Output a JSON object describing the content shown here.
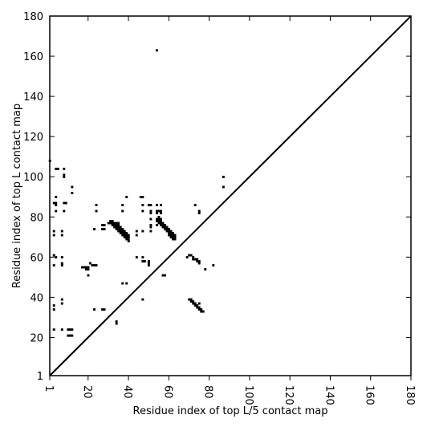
{
  "chart_data": {
    "type": "heatmap",
    "title": "",
    "xlabel": "Residue index of top L/5 contact map",
    "ylabel": "Residue index of top L contact map",
    "xlim": [
      1,
      180
    ],
    "ylim": [
      1,
      180
    ],
    "x_ticks": [
      1,
      20,
      40,
      60,
      80,
      100,
      120,
      140,
      160,
      180
    ],
    "y_ticks": [
      1,
      20,
      40,
      60,
      80,
      100,
      120,
      140,
      160,
      180
    ],
    "diagonal": {
      "from": [
        1,
        1
      ],
      "to": [
        180,
        180
      ]
    },
    "cell_color": "#000000",
    "background_color": "#ffffff",
    "contacts": [
      [
        1,
        108
      ],
      [
        4,
        104
      ],
      [
        5,
        104
      ],
      [
        8,
        104
      ],
      [
        8,
        101
      ],
      [
        8,
        100
      ],
      [
        12,
        95
      ],
      [
        12,
        92
      ],
      [
        4,
        90
      ],
      [
        3,
        87
      ],
      [
        4,
        87
      ],
      [
        4,
        86
      ],
      [
        8,
        87
      ],
      [
        9,
        87
      ],
      [
        4,
        83
      ],
      [
        8,
        83
      ],
      [
        3,
        73
      ],
      [
        3,
        71
      ],
      [
        7,
        73
      ],
      [
        7,
        71
      ],
      [
        3,
        61
      ],
      [
        4,
        60
      ],
      [
        7,
        60
      ],
      [
        7,
        57
      ],
      [
        7,
        56
      ],
      [
        3,
        56
      ],
      [
        7,
        39
      ],
      [
        7,
        37
      ],
      [
        3,
        36
      ],
      [
        3,
        34
      ],
      [
        3,
        24
      ],
      [
        7,
        24
      ],
      [
        10,
        24
      ],
      [
        11,
        24
      ],
      [
        12,
        24
      ],
      [
        10,
        21
      ],
      [
        11,
        21
      ],
      [
        12,
        21
      ],
      [
        24,
        86
      ],
      [
        24,
        83
      ],
      [
        27,
        76
      ],
      [
        28,
        76
      ],
      [
        27,
        74
      ],
      [
        28,
        74
      ],
      [
        23,
        74
      ],
      [
        17,
        55
      ],
      [
        18,
        55
      ],
      [
        19,
        55
      ],
      [
        20,
        55
      ],
      [
        19,
        54
      ],
      [
        20,
        54
      ],
      [
        20,
        51
      ],
      [
        21,
        57
      ],
      [
        22,
        56
      ],
      [
        23,
        56
      ],
      [
        24,
        56
      ],
      [
        23,
        34
      ],
      [
        27,
        34
      ],
      [
        28,
        34
      ],
      [
        34,
        28
      ],
      [
        34,
        27
      ],
      [
        31,
        78
      ],
      [
        32,
        78
      ],
      [
        30,
        77
      ],
      [
        31,
        77
      ],
      [
        32,
        77
      ],
      [
        33,
        77
      ],
      [
        34,
        77
      ],
      [
        35,
        77
      ],
      [
        32,
        76
      ],
      [
        33,
        76
      ],
      [
        34,
        76
      ],
      [
        35,
        76
      ],
      [
        33,
        75
      ],
      [
        34,
        75
      ],
      [
        35,
        75
      ],
      [
        36,
        75
      ],
      [
        34,
        74
      ],
      [
        35,
        74
      ],
      [
        36,
        74
      ],
      [
        37,
        74
      ],
      [
        35,
        73
      ],
      [
        36,
        73
      ],
      [
        37,
        73
      ],
      [
        38,
        73
      ],
      [
        36,
        72
      ],
      [
        37,
        72
      ],
      [
        38,
        72
      ],
      [
        39,
        72
      ],
      [
        37,
        71
      ],
      [
        38,
        71
      ],
      [
        39,
        71
      ],
      [
        40,
        71
      ],
      [
        38,
        70
      ],
      [
        39,
        70
      ],
      [
        40,
        70
      ],
      [
        39,
        69
      ],
      [
        40,
        69
      ],
      [
        40,
        68
      ],
      [
        37,
        86
      ],
      [
        37,
        83
      ],
      [
        39,
        90
      ],
      [
        44,
        73
      ],
      [
        44,
        71
      ],
      [
        44,
        60
      ],
      [
        47,
        60
      ],
      [
        47,
        58
      ],
      [
        48,
        58
      ],
      [
        50,
        58
      ],
      [
        50,
        57
      ],
      [
        50,
        56
      ],
      [
        37,
        47
      ],
      [
        39,
        47
      ],
      [
        47,
        39
      ],
      [
        46,
        90
      ],
      [
        47,
        90
      ],
      [
        47,
        86
      ],
      [
        47,
        83
      ],
      [
        47,
        73
      ],
      [
        50,
        86
      ],
      [
        51,
        86
      ],
      [
        51,
        83
      ],
      [
        51,
        82
      ],
      [
        51,
        79
      ],
      [
        51,
        76
      ],
      [
        51,
        75
      ],
      [
        51,
        73
      ],
      [
        54,
        86
      ],
      [
        54,
        83
      ],
      [
        55,
        83
      ],
      [
        56,
        83
      ],
      [
        54,
        82
      ],
      [
        56,
        82
      ],
      [
        56,
        86
      ],
      [
        54,
        79
      ],
      [
        55,
        79
      ],
      [
        56,
        79
      ],
      [
        55,
        80
      ],
      [
        54,
        78
      ],
      [
        55,
        78
      ],
      [
        56,
        78
      ],
      [
        55,
        77
      ],
      [
        56,
        77
      ],
      [
        57,
        77
      ],
      [
        56,
        76
      ],
      [
        57,
        76
      ],
      [
        58,
        76
      ],
      [
        54,
        76
      ],
      [
        57,
        75
      ],
      [
        58,
        75
      ],
      [
        59,
        75
      ],
      [
        58,
        74
      ],
      [
        59,
        74
      ],
      [
        60,
        74
      ],
      [
        59,
        73
      ],
      [
        60,
        73
      ],
      [
        61,
        73
      ],
      [
        60,
        72
      ],
      [
        61,
        72
      ],
      [
        62,
        72
      ],
      [
        60,
        71
      ],
      [
        61,
        71
      ],
      [
        62,
        71
      ],
      [
        63,
        71
      ],
      [
        61,
        70
      ],
      [
        62,
        70
      ],
      [
        63,
        70
      ],
      [
        62,
        69
      ],
      [
        63,
        69
      ],
      [
        54,
        163
      ],
      [
        57,
        51
      ],
      [
        58,
        51
      ],
      [
        70,
        61
      ],
      [
        71,
        61
      ],
      [
        72,
        60
      ],
      [
        72,
        59
      ],
      [
        73,
        59
      ],
      [
        74,
        59
      ],
      [
        74,
        58
      ],
      [
        75,
        58
      ],
      [
        75,
        57
      ],
      [
        69,
        60
      ],
      [
        70,
        39
      ],
      [
        71,
        39
      ],
      [
        71,
        38
      ],
      [
        72,
        38
      ],
      [
        72,
        37
      ],
      [
        73,
        37
      ],
      [
        73,
        36
      ],
      [
        74,
        36
      ],
      [
        74,
        35
      ],
      [
        75,
        35
      ],
      [
        75,
        34
      ],
      [
        76,
        34
      ],
      [
        76,
        33
      ],
      [
        77,
        33
      ],
      [
        75,
        37
      ],
      [
        73,
        86
      ],
      [
        75,
        83
      ],
      [
        75,
        82
      ],
      [
        78,
        54
      ],
      [
        82,
        56
      ],
      [
        87,
        100
      ],
      [
        87,
        95
      ]
    ]
  }
}
